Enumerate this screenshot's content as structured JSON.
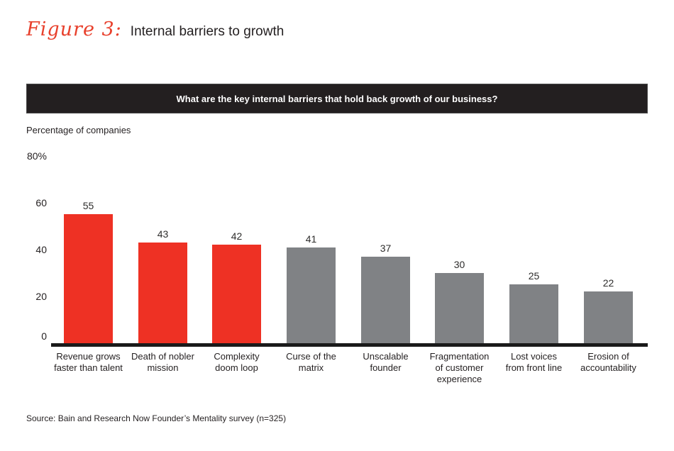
{
  "figure": {
    "label": "Figure 3:",
    "title": "Internal barriers to growth"
  },
  "banner": {
    "question": "What are the key internal barriers that hold back growth of our business?"
  },
  "chart_data": {
    "type": "bar",
    "title": "Internal barriers to growth",
    "ylabel": "Percentage of companies",
    "xlabel": "",
    "ylim": [
      0,
      80
    ],
    "grid": false,
    "value_labels": true,
    "legend": "none",
    "categories": [
      "Revenue grows faster than talent",
      "Death of nobler mission",
      "Complexity doom loop",
      "Curse of the matrix",
      "Unscalable founder",
      "Fragmentation of customer experience",
      "Lost voices from front line",
      "Erosion of accountability"
    ],
    "category_lines": [
      [
        "Revenue grows",
        "faster than talent"
      ],
      [
        "Death of nobler",
        "mission"
      ],
      [
        "Complexity",
        "doom loop"
      ],
      [
        "Curse of the",
        "matrix"
      ],
      [
        "Unscalable",
        "founder"
      ],
      [
        "Fragmentation",
        "of customer",
        "experience"
      ],
      [
        "Lost voices",
        "from front line"
      ],
      [
        "Erosion of",
        "accountability"
      ]
    ],
    "values": [
      55,
      43,
      42,
      41,
      37,
      30,
      25,
      22
    ],
    "bar_colors": [
      "red",
      "red",
      "red",
      "gray",
      "gray",
      "gray",
      "gray",
      "gray"
    ],
    "colors": {
      "red": "#ee3124",
      "gray": "#808285"
    },
    "yticks": [
      {
        "value": 80,
        "label": "80%"
      },
      {
        "value": 60,
        "label": "60"
      },
      {
        "value": 40,
        "label": "40"
      },
      {
        "value": 20,
        "label": "20"
      },
      {
        "value": 0,
        "label": "0"
      }
    ]
  },
  "source": "Source: Bain and Research Now Founder’s Mentality survey (n=325)"
}
